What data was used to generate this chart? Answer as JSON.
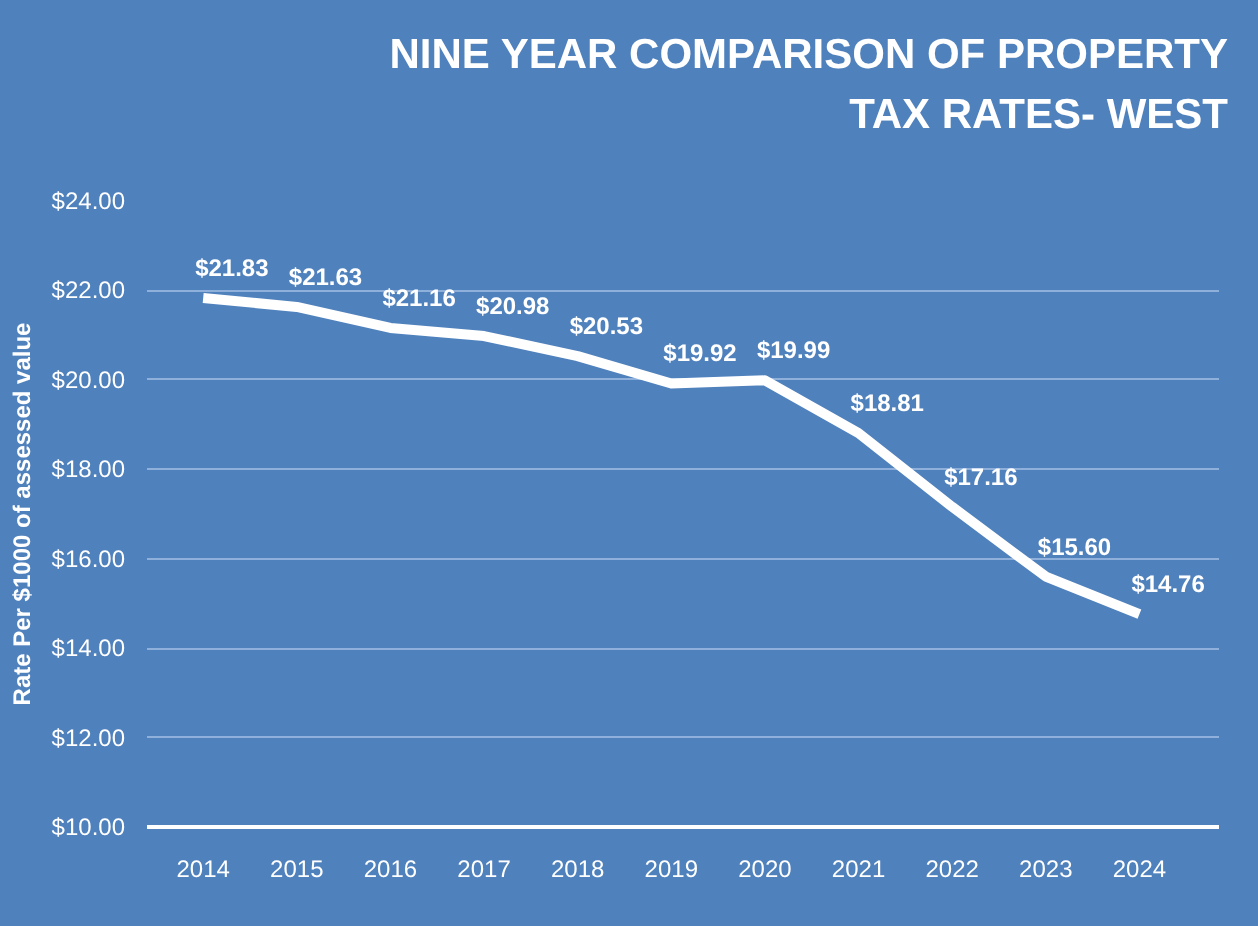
{
  "chart_data": {
    "type": "line",
    "title": "NINE YEAR COMPARISON OF PROPERTY\nTAX RATES- WEST",
    "ylabel": "Rate Per $1000 of assessed value",
    "categories": [
      "2014",
      "2015",
      "2016",
      "2017",
      "2018",
      "2019",
      "2020",
      "2021",
      "2022",
      "2023",
      "2024"
    ],
    "series": [
      {
        "color": "#ffffff",
        "values": [
          21.83,
          21.63,
          21.16,
          20.98,
          20.53,
          19.92,
          19.99,
          18.81,
          17.16,
          15.6,
          14.76
        ],
        "value_labels": [
          "$21.83",
          "$21.63",
          "$21.16",
          "$20.98",
          "$20.53",
          "$19.92",
          "$19.99",
          "$18.81",
          "$17.16",
          "$15.60",
          "$14.76"
        ]
      }
    ],
    "ylim": [
      10,
      24
    ],
    "yticks": [
      {
        "value": 10,
        "label": "$10.00"
      },
      {
        "value": 12,
        "label": "$12.00"
      },
      {
        "value": 14,
        "label": "$14.00"
      },
      {
        "value": 16,
        "label": "$16.00"
      },
      {
        "value": 18,
        "label": "$18.00"
      },
      {
        "value": 20,
        "label": "$20.00"
      },
      {
        "value": 22,
        "label": "$22.00"
      },
      {
        "value": 24,
        "label": "$24.00"
      }
    ],
    "grid": "y",
    "marker": "none",
    "line_style": "solid"
  }
}
